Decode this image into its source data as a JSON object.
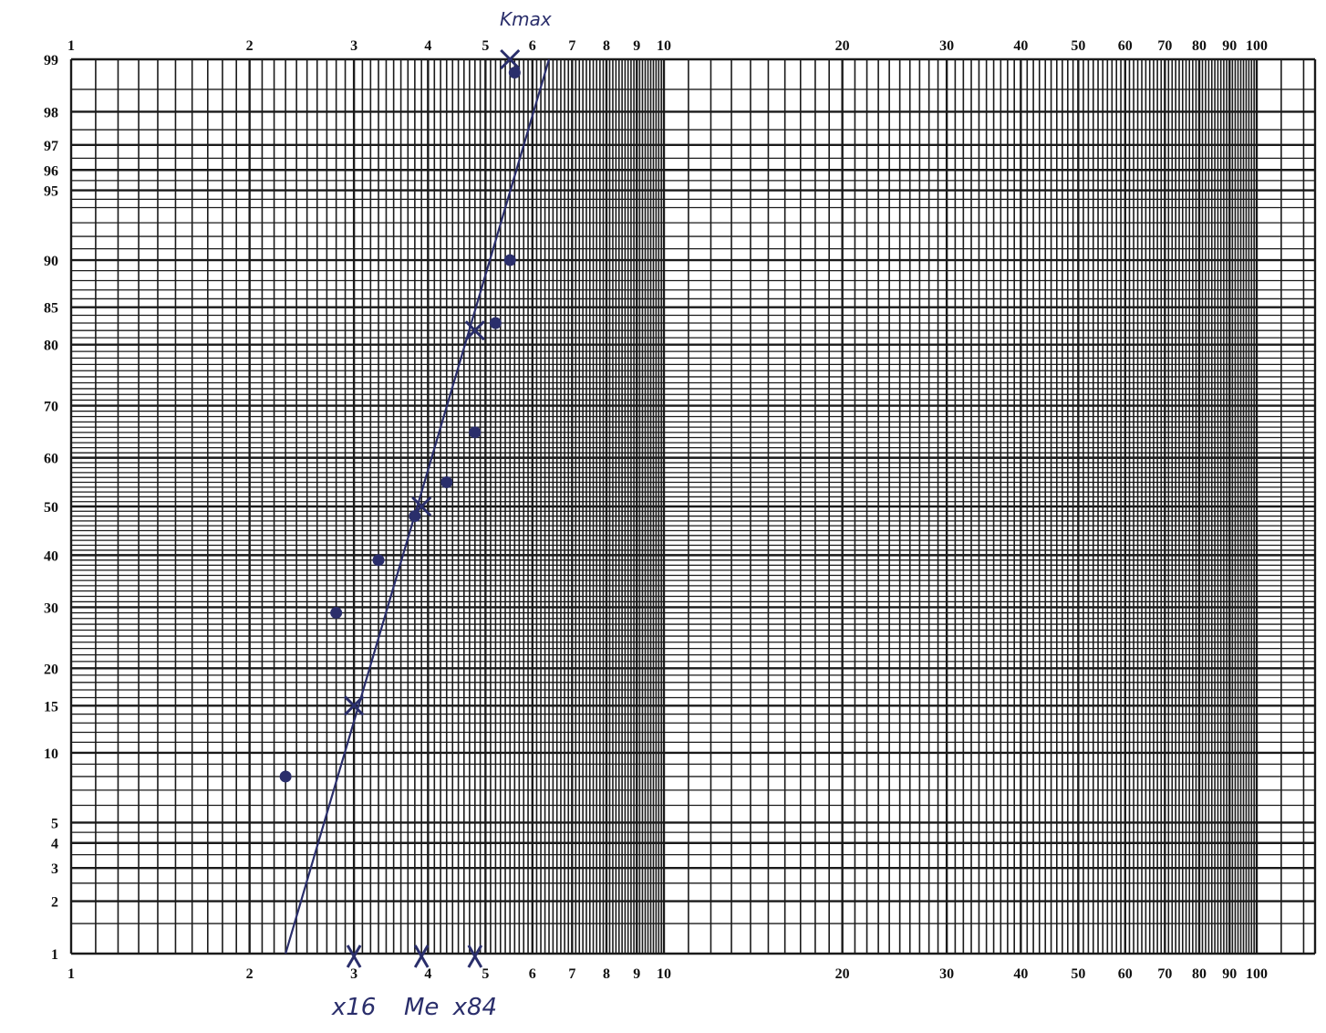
{
  "chart_data": {
    "type": "scatter",
    "x_scale": "log",
    "y_scale": "probability",
    "xlim": [
      1,
      100
    ],
    "ylim": [
      1,
      99
    ],
    "grid": true,
    "x_ticks": [
      "1",
      "2",
      "3",
      "4",
      "5",
      "6",
      "7",
      "8",
      "9",
      "10",
      "20",
      "30",
      "40",
      "50",
      "60",
      "70",
      "80",
      "90",
      "100"
    ],
    "y_ticks": [
      "1",
      "2",
      "3",
      "4",
      "5",
      "10",
      "15",
      "20",
      "30",
      "40",
      "50",
      "60",
      "70",
      "80",
      "85",
      "90",
      "95",
      "96",
      "97",
      "98",
      "99"
    ],
    "points": [
      {
        "x": 2.3,
        "y": 8
      },
      {
        "x": 2.8,
        "y": 29
      },
      {
        "x": 3.3,
        "y": 39
      },
      {
        "x": 3.8,
        "y": 48
      },
      {
        "x": 4.3,
        "y": 55
      },
      {
        "x": 4.8,
        "y": 65
      },
      {
        "x": 5.2,
        "y": 83
      },
      {
        "x": 5.5,
        "y": 90
      },
      {
        "x": 5.6,
        "y": 98.8
      }
    ],
    "markers": [
      {
        "x": 3.0,
        "y": 15
      },
      {
        "x": 3.9,
        "y": 50
      },
      {
        "x": 4.8,
        "y": 82
      },
      {
        "x": 5.5,
        "y": 99
      }
    ],
    "fit_line": [
      {
        "x": 2.3,
        "y": 1
      },
      {
        "x": 6.4,
        "y": 99
      }
    ],
    "axis_marks": [
      {
        "x": 3.0,
        "label": "x16"
      },
      {
        "x": 3.9,
        "label": "Me"
      },
      {
        "x": 4.8,
        "label": "x84"
      }
    ],
    "annotation": "Kmax",
    "colors": {
      "grid": "#1a1a1a",
      "ink": "#2a2e6b",
      "paper": "#ffffff"
    }
  }
}
